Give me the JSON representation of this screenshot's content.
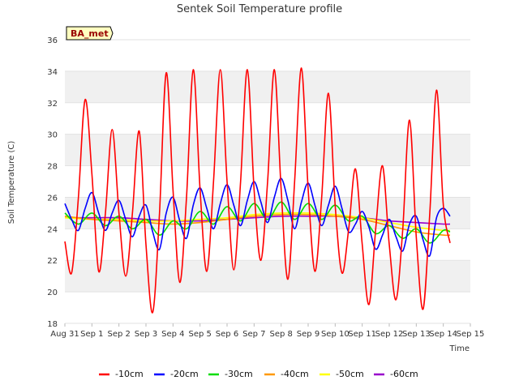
{
  "chart_data": {
    "type": "line",
    "title": "Sentek Soil Temperature profile",
    "xlabel": "Time",
    "ylabel": "Soil Temperature (C)",
    "ylim": [
      18,
      36
    ],
    "yticks": [
      18,
      20,
      22,
      24,
      26,
      28,
      30,
      32,
      34,
      36
    ],
    "xlim": [
      0,
      15
    ],
    "x_unit": "days since Aug 31",
    "xtick_labels": [
      "Aug 31",
      "Sep 1",
      "Sep 2",
      "Sep 3",
      "Sep 4",
      "Sep 5",
      "Sep 6",
      "Sep 7",
      "Sep 8",
      "Sep 9",
      "Sep 10",
      "Sep 11",
      "Sep 12",
      "Sep 13",
      "Sep 14",
      "Sep 15"
    ],
    "grid": "horizontal bands",
    "legend_position": "bottom",
    "annotation": "BA_met",
    "series": [
      {
        "name": "-10cm",
        "color": "#ff0000",
        "x": [
          0,
          0.25,
          0.5,
          0.75,
          1,
          1.25,
          1.5,
          1.75,
          2,
          2.25,
          2.5,
          2.75,
          3,
          3.25,
          3.5,
          3.75,
          4,
          4.25,
          4.5,
          4.75,
          5,
          5.25,
          5.5,
          5.75,
          6,
          6.25,
          6.5,
          6.75,
          7,
          7.25,
          7.5,
          7.75,
          8,
          8.25,
          8.5,
          8.75,
          9,
          9.25,
          9.5,
          9.75,
          10,
          10.25,
          10.5,
          10.75,
          11,
          11.25,
          11.5,
          11.75,
          12,
          12.25,
          12.5,
          12.75,
          13,
          13.25,
          13.5,
          13.75,
          14,
          14.25
        ],
        "y": [
          23.2,
          21.2,
          26.0,
          32.2,
          27.5,
          21.3,
          25.0,
          30.3,
          25.0,
          21.0,
          25.0,
          30.2,
          23.0,
          18.7,
          25.0,
          33.9,
          26.5,
          20.6,
          26.0,
          34.1,
          26.5,
          21.3,
          27.0,
          34.1,
          27.0,
          21.4,
          27.0,
          34.1,
          26.5,
          22.0,
          27.0,
          34.1,
          26.5,
          20.8,
          27.0,
          34.2,
          26.5,
          21.3,
          26.0,
          32.6,
          25.5,
          21.2,
          24.0,
          27.8,
          23.0,
          19.2,
          24.0,
          28.0,
          23.0,
          19.5,
          24.0,
          30.9,
          23.5,
          18.9,
          25.0,
          32.8,
          25.5,
          23.1
        ]
      },
      {
        "name": "-20cm",
        "color": "#0000ff",
        "x": [
          0,
          0.25,
          0.5,
          0.75,
          1,
          1.25,
          1.5,
          1.75,
          2,
          2.25,
          2.5,
          2.75,
          3,
          3.25,
          3.5,
          3.75,
          4,
          4.25,
          4.5,
          4.75,
          5,
          5.25,
          5.5,
          5.75,
          6,
          6.25,
          6.5,
          6.75,
          7,
          7.25,
          7.5,
          7.75,
          8,
          8.25,
          8.5,
          8.75,
          9,
          9.25,
          9.5,
          9.75,
          10,
          10.25,
          10.5,
          10.75,
          11,
          11.25,
          11.5,
          11.75,
          12,
          12.25,
          12.5,
          12.75,
          13,
          13.25,
          13.5,
          13.75,
          14,
          14.25
        ],
        "y": [
          25.6,
          24.6,
          23.9,
          25.3,
          26.3,
          25.0,
          23.9,
          25.0,
          25.8,
          24.6,
          23.5,
          24.8,
          25.5,
          23.8,
          22.7,
          25.0,
          26.0,
          24.5,
          23.4,
          25.5,
          26.6,
          25.3,
          24.0,
          25.6,
          26.8,
          25.5,
          24.2,
          25.8,
          27.0,
          25.7,
          24.4,
          26.0,
          27.2,
          25.8,
          24.0,
          25.7,
          26.9,
          25.5,
          24.2,
          25.5,
          26.7,
          25.3,
          23.8,
          24.3,
          25.1,
          24.1,
          22.7,
          23.6,
          24.6,
          23.5,
          22.6,
          24.3,
          24.8,
          23.3,
          22.3,
          24.7,
          25.3,
          24.8
        ]
      },
      {
        "name": "-30cm",
        "color": "#00dd00",
        "x": [
          0,
          0.5,
          1,
          1.5,
          2,
          2.5,
          3,
          3.5,
          4,
          4.5,
          5,
          5.5,
          6,
          6.5,
          7,
          7.5,
          8,
          8.5,
          9,
          9.5,
          10,
          10.5,
          11,
          11.5,
          12,
          12.5,
          13,
          13.5,
          14,
          14.25
        ],
        "y": [
          25.0,
          24.3,
          25.0,
          24.2,
          24.8,
          24.0,
          24.6,
          23.6,
          24.5,
          24.0,
          25.1,
          24.3,
          25.4,
          24.5,
          25.6,
          24.6,
          25.7,
          24.6,
          25.6,
          24.6,
          25.5,
          24.5,
          24.8,
          23.7,
          24.2,
          23.4,
          24.0,
          23.1,
          23.9,
          23.8
        ]
      },
      {
        "name": "-40cm",
        "color": "#ff9900",
        "x": [
          0,
          1,
          2,
          3,
          4,
          5,
          6,
          7,
          8,
          9,
          10,
          11,
          12,
          13,
          14,
          14.25
        ],
        "y": [
          24.8,
          24.6,
          24.5,
          24.4,
          24.3,
          24.4,
          24.6,
          24.8,
          24.9,
          24.9,
          24.8,
          24.6,
          24.2,
          23.8,
          23.6,
          23.6
        ]
      },
      {
        "name": "-50cm",
        "color": "#ffff00",
        "x": [
          0,
          1,
          2,
          3,
          4,
          5,
          6,
          7,
          8,
          9,
          10,
          11,
          12,
          13,
          14,
          14.25
        ],
        "y": [
          24.7,
          24.6,
          24.6,
          24.5,
          24.5,
          24.6,
          24.7,
          24.9,
          25.0,
          25.0,
          24.9,
          24.7,
          24.4,
          24.1,
          23.9,
          23.9
        ]
      },
      {
        "name": "-60cm",
        "color": "#9900cc",
        "x": [
          0,
          1,
          2,
          3,
          4,
          5,
          6,
          7,
          8,
          9,
          10,
          11,
          12,
          13,
          14,
          14.25
        ],
        "y": [
          24.7,
          24.7,
          24.7,
          24.6,
          24.5,
          24.5,
          24.6,
          24.7,
          24.8,
          24.8,
          24.8,
          24.7,
          24.5,
          24.4,
          24.3,
          24.3
        ]
      }
    ]
  }
}
